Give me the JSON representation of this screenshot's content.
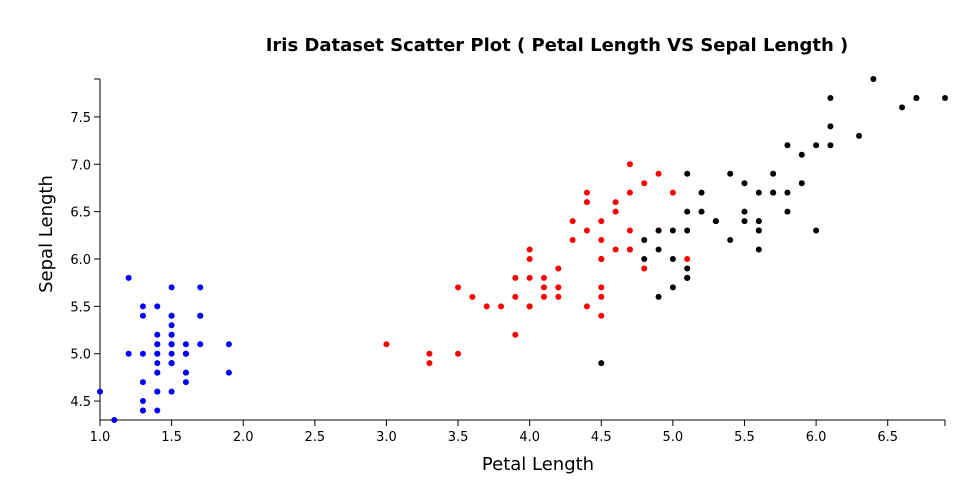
{
  "chart_data": {
    "type": "scatter",
    "title": "Iris Dataset Scatter Plot ( Petal Length VS Sepal Length )",
    "xlabel": "Petal Length",
    "ylabel": "Sepal Length",
    "xlim": [
      1.0,
      6.9
    ],
    "ylim": [
      4.3,
      7.9
    ],
    "xticks": [
      "1.0",
      "1.5",
      "2.0",
      "2.5",
      "3.0",
      "3.5",
      "4.0",
      "4.5",
      "5.0",
      "5.5",
      "6.0",
      "6.5"
    ],
    "yticks": [
      "4.5",
      "5.0",
      "5.5",
      "6.0",
      "6.5",
      "7.0",
      "7.5"
    ],
    "grid": false,
    "legend": "none",
    "series": [
      {
        "color": "#0000ff",
        "points": [
          [
            1.4,
            5.1
          ],
          [
            1.4,
            4.9
          ],
          [
            1.3,
            4.7
          ],
          [
            1.5,
            4.6
          ],
          [
            1.4,
            5.0
          ],
          [
            1.7,
            5.4
          ],
          [
            1.4,
            4.6
          ],
          [
            1.5,
            5.0
          ],
          [
            1.4,
            4.4
          ],
          [
            1.5,
            4.9
          ],
          [
            1.5,
            5.4
          ],
          [
            1.6,
            4.8
          ],
          [
            1.4,
            4.8
          ],
          [
            1.1,
            4.3
          ],
          [
            1.2,
            5.8
          ],
          [
            1.5,
            5.7
          ],
          [
            1.3,
            5.4
          ],
          [
            1.4,
            5.1
          ],
          [
            1.7,
            5.7
          ],
          [
            1.5,
            5.1
          ],
          [
            1.7,
            5.4
          ],
          [
            1.5,
            5.1
          ],
          [
            1.0,
            4.6
          ],
          [
            1.7,
            5.1
          ],
          [
            1.9,
            4.8
          ],
          [
            1.6,
            5.0
          ],
          [
            1.6,
            5.0
          ],
          [
            1.5,
            5.2
          ],
          [
            1.4,
            5.2
          ],
          [
            1.6,
            4.7
          ],
          [
            1.6,
            4.8
          ],
          [
            1.5,
            5.4
          ],
          [
            1.5,
            5.2
          ],
          [
            1.4,
            5.5
          ],
          [
            1.5,
            4.9
          ],
          [
            1.2,
            5.0
          ],
          [
            1.3,
            5.5
          ],
          [
            1.5,
            4.9
          ],
          [
            1.3,
            4.4
          ],
          [
            1.5,
            5.1
          ],
          [
            1.3,
            5.0
          ],
          [
            1.3,
            4.5
          ],
          [
            1.3,
            4.4
          ],
          [
            1.6,
            5.0
          ],
          [
            1.9,
            5.1
          ],
          [
            1.4,
            4.8
          ],
          [
            1.6,
            5.1
          ],
          [
            1.4,
            4.6
          ],
          [
            1.5,
            5.3
          ],
          [
            1.4,
            5.0
          ]
        ]
      },
      {
        "color": "#ff0000",
        "points": [
          [
            4.7,
            7.0
          ],
          [
            4.5,
            6.4
          ],
          [
            4.9,
            6.9
          ],
          [
            4.0,
            5.5
          ],
          [
            4.6,
            6.5
          ],
          [
            4.5,
            5.7
          ],
          [
            4.7,
            6.3
          ],
          [
            3.3,
            4.9
          ],
          [
            4.6,
            6.6
          ],
          [
            3.9,
            5.2
          ],
          [
            3.5,
            5.0
          ],
          [
            4.2,
            5.9
          ],
          [
            4.0,
            6.0
          ],
          [
            4.7,
            6.1
          ],
          [
            3.6,
            5.6
          ],
          [
            4.4,
            6.7
          ],
          [
            4.5,
            5.6
          ],
          [
            4.1,
            5.8
          ],
          [
            4.5,
            6.2
          ],
          [
            3.9,
            5.6
          ],
          [
            4.8,
            5.9
          ],
          [
            4.0,
            6.1
          ],
          [
            4.9,
            6.3
          ],
          [
            4.7,
            6.1
          ],
          [
            4.3,
            6.4
          ],
          [
            4.4,
            6.6
          ],
          [
            4.8,
            6.8
          ],
          [
            5.0,
            6.7
          ],
          [
            4.5,
            6.0
          ],
          [
            3.5,
            5.7
          ],
          [
            3.8,
            5.5
          ],
          [
            3.7,
            5.5
          ],
          [
            3.9,
            5.8
          ],
          [
            5.1,
            6.0
          ],
          [
            4.5,
            5.4
          ],
          [
            4.5,
            6.0
          ],
          [
            4.7,
            6.7
          ],
          [
            4.4,
            6.3
          ],
          [
            4.1,
            5.6
          ],
          [
            4.0,
            5.5
          ],
          [
            4.4,
            5.5
          ],
          [
            4.6,
            6.1
          ],
          [
            4.0,
            5.8
          ],
          [
            3.3,
            5.0
          ],
          [
            4.2,
            5.6
          ],
          [
            4.2,
            5.7
          ],
          [
            4.2,
            5.7
          ],
          [
            4.3,
            6.2
          ],
          [
            3.0,
            5.1
          ],
          [
            4.1,
            5.7
          ]
        ]
      },
      {
        "color": "#000000",
        "points": [
          [
            6.0,
            6.3
          ],
          [
            5.1,
            5.8
          ],
          [
            5.9,
            7.1
          ],
          [
            5.6,
            6.3
          ],
          [
            5.8,
            6.5
          ],
          [
            6.6,
            7.6
          ],
          [
            4.5,
            4.9
          ],
          [
            6.3,
            7.3
          ],
          [
            5.8,
            6.7
          ],
          [
            6.1,
            7.2
          ],
          [
            5.1,
            6.5
          ],
          [
            5.3,
            6.4
          ],
          [
            5.5,
            6.8
          ],
          [
            5.0,
            5.7
          ],
          [
            5.1,
            5.8
          ],
          [
            5.3,
            6.4
          ],
          [
            5.5,
            6.5
          ],
          [
            6.7,
            7.7
          ],
          [
            6.9,
            7.7
          ],
          [
            5.0,
            6.0
          ],
          [
            5.7,
            6.9
          ],
          [
            4.9,
            5.6
          ],
          [
            6.7,
            7.7
          ],
          [
            4.9,
            6.3
          ],
          [
            5.7,
            6.7
          ],
          [
            6.0,
            7.2
          ],
          [
            4.8,
            6.2
          ],
          [
            4.9,
            6.1
          ],
          [
            5.6,
            6.4
          ],
          [
            5.8,
            7.2
          ],
          [
            6.1,
            7.4
          ],
          [
            6.4,
            7.9
          ],
          [
            5.6,
            6.4
          ],
          [
            5.1,
            6.3
          ],
          [
            5.6,
            6.1
          ],
          [
            6.1,
            7.7
          ],
          [
            5.6,
            6.3
          ],
          [
            5.5,
            6.4
          ],
          [
            4.8,
            6.0
          ],
          [
            5.4,
            6.9
          ],
          [
            5.6,
            6.7
          ],
          [
            5.1,
            6.9
          ],
          [
            5.1,
            5.8
          ],
          [
            5.9,
            6.8
          ],
          [
            5.7,
            6.7
          ],
          [
            5.2,
            6.7
          ],
          [
            5.0,
            6.3
          ],
          [
            5.2,
            6.5
          ],
          [
            5.4,
            6.2
          ],
          [
            5.1,
            5.9
          ]
        ]
      }
    ]
  }
}
